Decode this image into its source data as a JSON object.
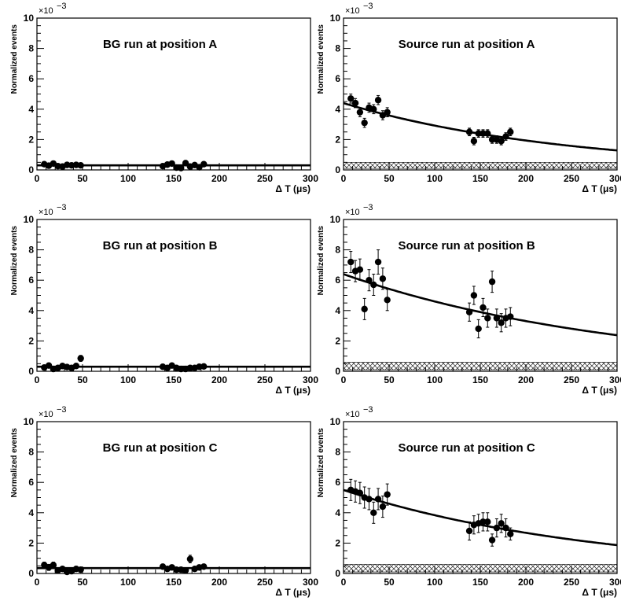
{
  "chart_data": [
    {
      "type": "scatter",
      "title": "BG run at position A",
      "xlabel": "Δ T (μs)",
      "ylabel": "Normalized events",
      "multiplier": "×10",
      "exponent": "−3",
      "xlim": [
        0,
        300
      ],
      "ylim": [
        0,
        10
      ],
      "xticks": [
        0,
        50,
        100,
        150,
        200,
        250,
        300
      ],
      "yticks": [
        0,
        2,
        4,
        6,
        8,
        10
      ],
      "points": {
        "x": [
          8,
          13,
          18,
          23,
          28,
          33,
          38,
          43,
          48,
          138,
          143,
          148,
          153,
          158,
          163,
          168,
          173,
          178,
          183
        ],
        "y": [
          0.38,
          0.28,
          0.42,
          0.25,
          0.22,
          0.33,
          0.3,
          0.33,
          0.3,
          0.25,
          0.35,
          0.42,
          0.15,
          0.12,
          0.45,
          0.22,
          0.32,
          0.18,
          0.38
        ],
        "err": [
          0.12,
          0.12,
          0.12,
          0.12,
          0.12,
          0.12,
          0.12,
          0.12,
          0.12,
          0.12,
          0.12,
          0.12,
          0.12,
          0.12,
          0.12,
          0.12,
          0.12,
          0.12,
          0.12
        ]
      },
      "fit": {
        "type": "flat",
        "a": 0.3,
        "b": 0
      },
      "band": {
        "low": 0,
        "high": 0
      }
    },
    {
      "type": "scatter",
      "title": "Source run at position A",
      "xlabel": "Δ T (μs)",
      "ylabel": "Normalized events",
      "multiplier": "×10",
      "exponent": "−3",
      "xlim": [
        0,
        300
      ],
      "ylim": [
        0,
        10
      ],
      "xticks": [
        0,
        50,
        100,
        150,
        200,
        250,
        300
      ],
      "yticks": [
        0,
        2,
        4,
        6,
        8,
        10
      ],
      "points": {
        "x": [
          8,
          13,
          18,
          23,
          28,
          33,
          38,
          43,
          48,
          138,
          143,
          148,
          153,
          158,
          163,
          168,
          173,
          178,
          183
        ],
        "y": [
          4.7,
          4.4,
          3.8,
          3.1,
          4.1,
          4.0,
          4.6,
          3.6,
          3.8,
          2.5,
          1.9,
          2.4,
          2.4,
          2.4,
          2.0,
          2.0,
          1.9,
          2.2,
          2.5
        ],
        "err": [
          0.3,
          0.3,
          0.3,
          0.3,
          0.3,
          0.3,
          0.3,
          0.3,
          0.3,
          0.25,
          0.25,
          0.25,
          0.25,
          0.25,
          0.25,
          0.25,
          0.25,
          0.25,
          0.25
        ]
      },
      "fit": {
        "type": "exp",
        "a": 4.4,
        "b": 0.0041
      },
      "band": {
        "low": 0.1,
        "high": 0.5
      }
    },
    {
      "type": "scatter",
      "title": "BG run at position B",
      "xlabel": "Δ T (μs)",
      "ylabel": "Normalized events",
      "multiplier": "×10",
      "exponent": "−3",
      "xlim": [
        0,
        300
      ],
      "ylim": [
        0,
        10
      ],
      "xticks": [
        0,
        50,
        100,
        150,
        200,
        250,
        300
      ],
      "yticks": [
        0,
        2,
        4,
        6,
        8,
        10
      ],
      "points": {
        "x": [
          8,
          13,
          18,
          23,
          28,
          33,
          38,
          43,
          48,
          138,
          143,
          148,
          153,
          158,
          163,
          168,
          173,
          178,
          183
        ],
        "y": [
          0.25,
          0.38,
          0.15,
          0.22,
          0.35,
          0.28,
          0.22,
          0.35,
          0.85,
          0.3,
          0.22,
          0.38,
          0.22,
          0.15,
          0.15,
          0.22,
          0.22,
          0.3,
          0.32
        ],
        "err": [
          0.15,
          0.15,
          0.15,
          0.15,
          0.15,
          0.15,
          0.15,
          0.15,
          0.2,
          0.12,
          0.12,
          0.12,
          0.12,
          0.12,
          0.12,
          0.12,
          0.12,
          0.12,
          0.12
        ]
      },
      "fit": {
        "type": "flat",
        "a": 0.3,
        "b": 0
      },
      "band": {
        "low": 0,
        "high": 0
      }
    },
    {
      "type": "scatter",
      "title": "Source run at position B",
      "xlabel": "Δ T (μs)",
      "ylabel": "Normalized events",
      "multiplier": "×10",
      "exponent": "−3",
      "xlim": [
        0,
        300
      ],
      "ylim": [
        0,
        10
      ],
      "xticks": [
        0,
        50,
        100,
        150,
        200,
        250,
        300
      ],
      "yticks": [
        0,
        2,
        4,
        6,
        8,
        10
      ],
      "points": {
        "x": [
          8,
          13,
          18,
          23,
          28,
          33,
          38,
          43,
          48,
          138,
          143,
          148,
          153,
          158,
          163,
          168,
          173,
          178,
          183
        ],
        "y": [
          7.2,
          6.6,
          6.7,
          4.1,
          6.0,
          5.7,
          7.2,
          6.1,
          4.7,
          3.9,
          5.0,
          2.8,
          4.2,
          3.5,
          5.9,
          3.5,
          3.2,
          3.5,
          3.6
        ],
        "err": [
          0.7,
          0.7,
          0.7,
          0.7,
          0.7,
          0.7,
          0.8,
          0.7,
          0.7,
          0.6,
          0.6,
          0.6,
          0.6,
          0.6,
          0.7,
          0.6,
          0.6,
          0.6,
          0.6
        ]
      },
      "fit": {
        "type": "exp",
        "a": 6.4,
        "b": 0.0033
      },
      "band": {
        "low": 0.1,
        "high": 0.6
      }
    },
    {
      "type": "scatter",
      "title": "BG run at position C",
      "xlabel": "Δ T (μs)",
      "ylabel": "Normalized events",
      "multiplier": "×10",
      "exponent": "−3",
      "xlim": [
        0,
        300
      ],
      "ylim": [
        0,
        10
      ],
      "xticks": [
        0,
        50,
        100,
        150,
        200,
        250,
        300
      ],
      "yticks": [
        0,
        2,
        4,
        6,
        8,
        10
      ],
      "points": {
        "x": [
          8,
          13,
          18,
          23,
          28,
          33,
          38,
          43,
          48,
          138,
          143,
          148,
          153,
          158,
          163,
          168,
          173,
          178,
          183
        ],
        "y": [
          0.55,
          0.4,
          0.55,
          0.2,
          0.3,
          0.1,
          0.15,
          0.3,
          0.25,
          0.45,
          0.3,
          0.4,
          0.25,
          0.25,
          0.2,
          0.95,
          0.3,
          0.4,
          0.45
        ],
        "err": [
          0.2,
          0.2,
          0.2,
          0.15,
          0.15,
          0.15,
          0.15,
          0.15,
          0.15,
          0.15,
          0.15,
          0.15,
          0.15,
          0.15,
          0.15,
          0.25,
          0.15,
          0.15,
          0.15
        ]
      },
      "fit": {
        "type": "flat",
        "a": 0.35,
        "b": 0
      },
      "band": {
        "low": 0,
        "high": 0
      }
    },
    {
      "type": "scatter",
      "title": "Source run at position C",
      "xlabel": "Δ T (μs)",
      "ylabel": "Normalized events",
      "multiplier": "×10",
      "exponent": "−3",
      "xlim": [
        0,
        300
      ],
      "ylim": [
        0,
        10
      ],
      "xticks": [
        0,
        50,
        100,
        150,
        200,
        250,
        300
      ],
      "yticks": [
        0,
        2,
        4,
        6,
        8,
        10
      ],
      "points": {
        "x": [
          8,
          13,
          18,
          23,
          28,
          33,
          38,
          43,
          48,
          138,
          143,
          148,
          153,
          158,
          163,
          168,
          173,
          178,
          183
        ],
        "y": [
          5.5,
          5.4,
          5.3,
          5.0,
          4.9,
          4.0,
          4.9,
          4.4,
          5.2,
          2.8,
          3.2,
          3.3,
          3.4,
          3.4,
          2.2,
          3.0,
          3.3,
          3.0,
          2.6
        ],
        "err": [
          0.7,
          0.7,
          0.7,
          0.7,
          0.7,
          0.7,
          0.7,
          0.7,
          0.7,
          0.6,
          0.6,
          0.6,
          0.6,
          0.6,
          0.4,
          0.6,
          0.6,
          0.6,
          0.4
        ]
      },
      "fit": {
        "type": "exp",
        "a": 5.5,
        "b": 0.0036
      },
      "band": {
        "low": 0.1,
        "high": 0.6
      }
    }
  ]
}
